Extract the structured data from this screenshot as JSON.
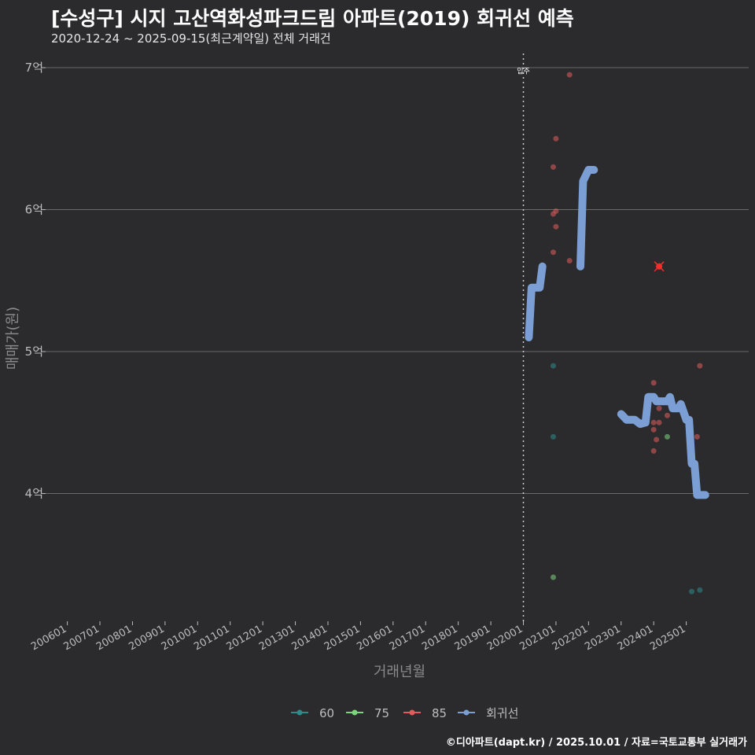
{
  "title": "[수성구] 시지 고산역화성파크드림 아파트(2019) 회귀선 예측",
  "subtitle": "2020-12-24 ~ 2025-09-15(최근계약일) 전체 거래건",
  "footer": "©디아파트(dapt.kr) / 2025.10.01 / 자료=국토교통부 실거래가",
  "chart_data": {
    "type": "scatter",
    "xlabel": "거래년월",
    "ylabel": "매매가(원)",
    "xlim": [
      "2005-05",
      "2026-12"
    ],
    "ylim": [
      3.1,
      7.1
    ],
    "y_ticks": [
      {
        "value": 4,
        "label": "4억"
      },
      {
        "value": 5,
        "label": "5억"
      },
      {
        "value": 6,
        "label": "6억"
      },
      {
        "value": 7,
        "label": "7억"
      }
    ],
    "x_ticks": [
      "200601",
      "200701",
      "200801",
      "200901",
      "201001",
      "201101",
      "201201",
      "201301",
      "201401",
      "201501",
      "201601",
      "201701",
      "201801",
      "201901",
      "202001",
      "202101",
      "202201",
      "202301",
      "202401",
      "202501"
    ],
    "grid": "horizontal",
    "annotation": {
      "x": "2020-01",
      "label": "입주"
    },
    "legend": {
      "position": "bottom",
      "items": [
        {
          "name": "60",
          "color": "#2e8b8b"
        },
        {
          "name": "75",
          "color": "#7ed37e"
        },
        {
          "name": "85",
          "color": "#e05c5c"
        },
        {
          "name": "회귀선",
          "color": "#7b9fd4"
        }
      ]
    },
    "series": [
      {
        "name": "60",
        "color": "#2e8b8b",
        "points": [
          {
            "x": "2020-12",
            "y": 4.9
          },
          {
            "x": "2020-12",
            "y": 4.4
          },
          {
            "x": "2025-03",
            "y": 3.31
          },
          {
            "x": "2025-06",
            "y": 3.32
          }
        ]
      },
      {
        "name": "75",
        "color": "#7ed37e",
        "points": [
          {
            "x": "2020-12",
            "y": 3.41
          },
          {
            "x": "2024-06",
            "y": 4.4
          }
        ]
      },
      {
        "name": "85",
        "color": "#e05c5c",
        "points": [
          {
            "x": "2020-12",
            "y": 6.3
          },
          {
            "x": "2021-01",
            "y": 6.5
          },
          {
            "x": "2020-12",
            "y": 5.97
          },
          {
            "x": "2021-01",
            "y": 5.99
          },
          {
            "x": "2021-01",
            "y": 5.88
          },
          {
            "x": "2020-12",
            "y": 5.7
          },
          {
            "x": "2021-06",
            "y": 6.95
          },
          {
            "x": "2021-06",
            "y": 5.64
          },
          {
            "x": "2024-03",
            "y": 5.6
          },
          {
            "x": "2024-01",
            "y": 4.78
          },
          {
            "x": "2023-10",
            "y": 4.5
          },
          {
            "x": "2024-01",
            "y": 4.5
          },
          {
            "x": "2024-01",
            "y": 4.45
          },
          {
            "x": "2024-02",
            "y": 4.38
          },
          {
            "x": "2024-01",
            "y": 4.3
          },
          {
            "x": "2024-03",
            "y": 4.6
          },
          {
            "x": "2024-03",
            "y": 4.5
          },
          {
            "x": "2024-06",
            "y": 4.55
          },
          {
            "x": "2025-05",
            "y": 4.4
          },
          {
            "x": "2025-06",
            "y": 4.9
          }
        ]
      },
      {
        "name": "회귀선",
        "color": "#7b9fd4",
        "type": "line",
        "points": [
          {
            "x": "2020-03",
            "y": 5.1
          },
          {
            "x": "2020-04",
            "y": 5.45
          },
          {
            "x": "2020-07",
            "y": 5.45
          },
          {
            "x": "2020-08",
            "y": 5.6
          },
          {
            "x": "2021-10",
            "y": 5.6
          },
          {
            "x": "2021-11",
            "y": 6.2
          },
          {
            "x": "2022-01",
            "y": 6.28
          },
          {
            "x": "2022-03",
            "y": 6.28
          },
          {
            "x": "2023-01",
            "y": 4.56
          },
          {
            "x": "2023-03",
            "y": 4.52
          },
          {
            "x": "2023-06",
            "y": 4.52
          },
          {
            "x": "2023-08",
            "y": 4.49
          },
          {
            "x": "2023-10",
            "y": 4.5
          },
          {
            "x": "2023-11",
            "y": 4.68
          },
          {
            "x": "2024-01",
            "y": 4.68
          },
          {
            "x": "2024-02",
            "y": 4.65
          },
          {
            "x": "2024-06",
            "y": 4.65
          },
          {
            "x": "2024-07",
            "y": 4.68
          },
          {
            "x": "2024-08",
            "y": 4.6
          },
          {
            "x": "2024-10",
            "y": 4.6
          },
          {
            "x": "2024-11",
            "y": 4.63
          },
          {
            "x": "2025-01",
            "y": 4.52
          },
          {
            "x": "2025-02",
            "y": 4.52
          },
          {
            "x": "2025-03",
            "y": 4.21
          },
          {
            "x": "2025-04",
            "y": 4.21
          },
          {
            "x": "2025-05",
            "y": 3.99
          },
          {
            "x": "2025-08",
            "y": 3.99
          }
        ]
      }
    ],
    "highlight": {
      "x": "2024-03",
      "y": 5.6,
      "series": "85"
    }
  }
}
